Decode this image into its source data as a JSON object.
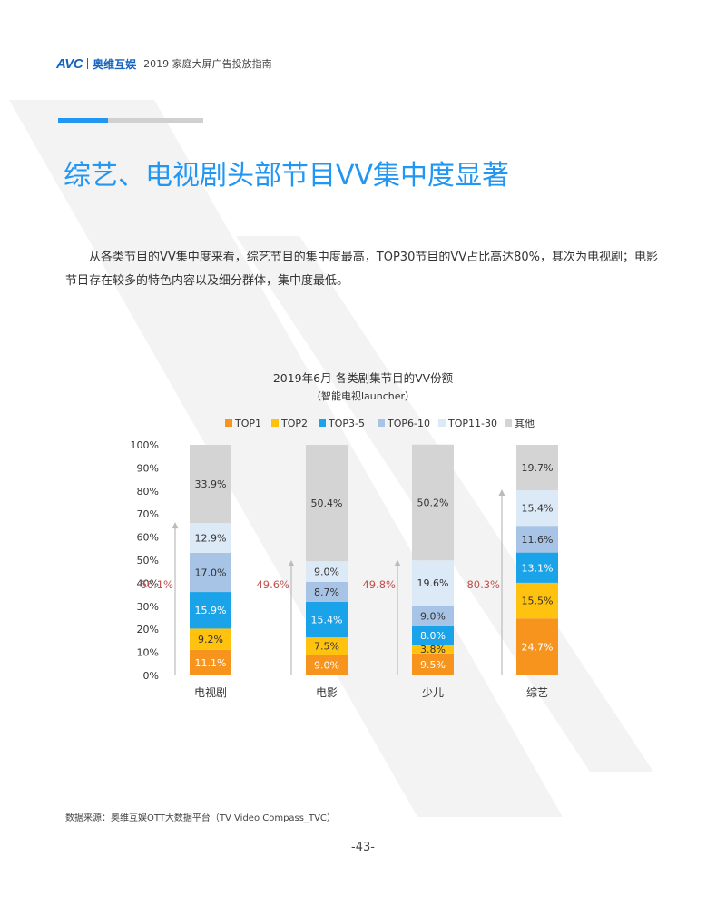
{
  "header": {
    "logo_mark": "AVC",
    "logo_cn": "奥维互娱",
    "title": "2019 家庭大屏广告投放指南"
  },
  "page_title": "综艺、电视剧头部节目VV集中度显著",
  "intro": "从各类节目的VV集中度来看，综艺节目的集中度最高，TOP30节目的VV占比高达80%，其次为电视剧；电影节目存在较多的特色内容以及细分群体，集中度最低。",
  "chart_data": {
    "type": "bar",
    "stacked": true,
    "title": "2019年6月 各类剧集节目的VV份额",
    "subtitle": "（智能电视launcher）",
    "categories": [
      "电视剧",
      "电影",
      "少儿",
      "综艺"
    ],
    "ylim": [
      0,
      100
    ],
    "yticks": [
      "0%",
      "10%",
      "20%",
      "30%",
      "40%",
      "50%",
      "60%",
      "70%",
      "80%",
      "90%",
      "100%"
    ],
    "legend_position": "top",
    "series": [
      {
        "name": "TOP1",
        "color": "#f7941d",
        "values": [
          11.1,
          9.0,
          9.5,
          24.7
        ],
        "labels": [
          "11.1%",
          "9.0%",
          "9.5%",
          "24.7%"
        ]
      },
      {
        "name": "TOP2",
        "color": "#ffc20e",
        "values": [
          9.2,
          7.5,
          3.8,
          15.5
        ],
        "labels": [
          "9.2%",
          "7.5%",
          "3.8%",
          "15.5%"
        ]
      },
      {
        "name": "TOP3-5",
        "color": "#1aa3e8",
        "values": [
          15.9,
          15.4,
          8.0,
          13.1
        ],
        "labels": [
          "15.9%",
          "15.4%",
          "8.0%",
          "13.1%"
        ]
      },
      {
        "name": "TOP6-10",
        "color": "#a7c4e6",
        "values": [
          17.0,
          8.7,
          9.0,
          11.6
        ],
        "labels": [
          "17.0%",
          "8.7%",
          "9.0%",
          "11.6%"
        ]
      },
      {
        "name": "TOP11-30",
        "color": "#dce9f6",
        "values": [
          12.9,
          9.0,
          19.6,
          15.4
        ],
        "labels": [
          "12.9%",
          "9.0%",
          "19.6%",
          "15.4%"
        ]
      },
      {
        "name": "其他",
        "color": "#d4d4d4",
        "values": [
          33.9,
          50.4,
          50.2,
          19.7
        ],
        "labels": [
          "33.9%",
          "50.4%",
          "50.2%",
          "19.7%"
        ]
      }
    ],
    "annotations": {
      "values": [
        66.1,
        49.6,
        49.8,
        80.3
      ],
      "labels": [
        "66.1%",
        "49.6%",
        "49.8%",
        "80.3%"
      ],
      "color": "#c0504d"
    },
    "grid": false
  },
  "source": "数据来源：奥维互娱OTT大数据平台（TV Video Compass_TVC）",
  "page_number": "-43-"
}
